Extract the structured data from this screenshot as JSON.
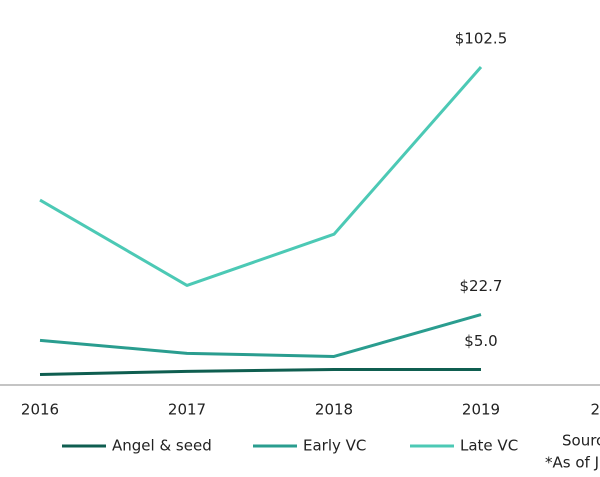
{
  "chart_data": {
    "type": "line",
    "categories": [
      "2016",
      "2017",
      "2018",
      "2019",
      "2"
    ],
    "series": [
      {
        "name": "Angel & seed",
        "color": "#0f5e50",
        "values": [
          3.4,
          4.4,
          5.0,
          5.0,
          null
        ],
        "value_labels": [
          null,
          null,
          null,
          "$5.0",
          null
        ]
      },
      {
        "name": "Early VC",
        "color": "#2a9d8f",
        "values": [
          14.4,
          10.2,
          9.2,
          22.7,
          null
        ],
        "value_labels": [
          null,
          null,
          null,
          "$22.7",
          null
        ]
      },
      {
        "name": "Late VC",
        "color": "#4cc9b5",
        "values": [
          59.6,
          32.1,
          48.6,
          102.5,
          null
        ],
        "value_labels": [
          null,
          null,
          null,
          "$102.5",
          null
        ]
      }
    ],
    "ylim": [
      0,
      102.5
    ],
    "notes": [
      "Sourc",
      "*As of J"
    ]
  }
}
